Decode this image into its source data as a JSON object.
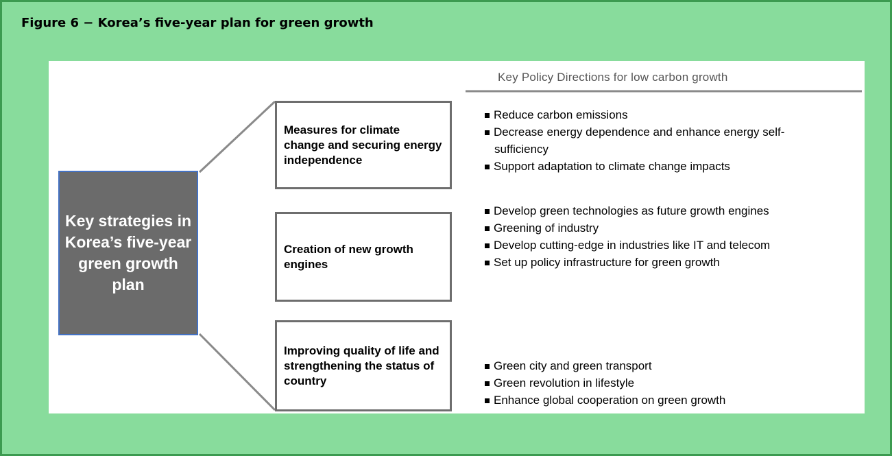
{
  "title": "Figure 6 − Korea’s five-year plan for green growth",
  "left_box": {
    "label": "Key strategies in Korea’s five-year green growth plan"
  },
  "header": "Key Policy Directions for low carbon growth",
  "groups": [
    {
      "label": "Measures for climate change and securing energy independence",
      "bullets": [
        "Reduce carbon emissions",
        "Decrease energy dependence and enhance energy self-sufficiency",
        "Support adaptation to climate change impacts"
      ]
    },
    {
      "label": "Creation of new growth engines",
      "bullets": [
        "Develop green technologies as future growth engines",
        "Greening of industry",
        "Develop cutting-edge in industries like IT and telecom",
        "Set up policy infrastructure for green growth"
      ]
    },
    {
      "label": "Improving quality of life and strengthening the status of country",
      "bullets": [
        "Green city and green transport",
        "Green revolution in lifestyle",
        "Enhance global cooperation on green growth"
      ]
    }
  ]
}
